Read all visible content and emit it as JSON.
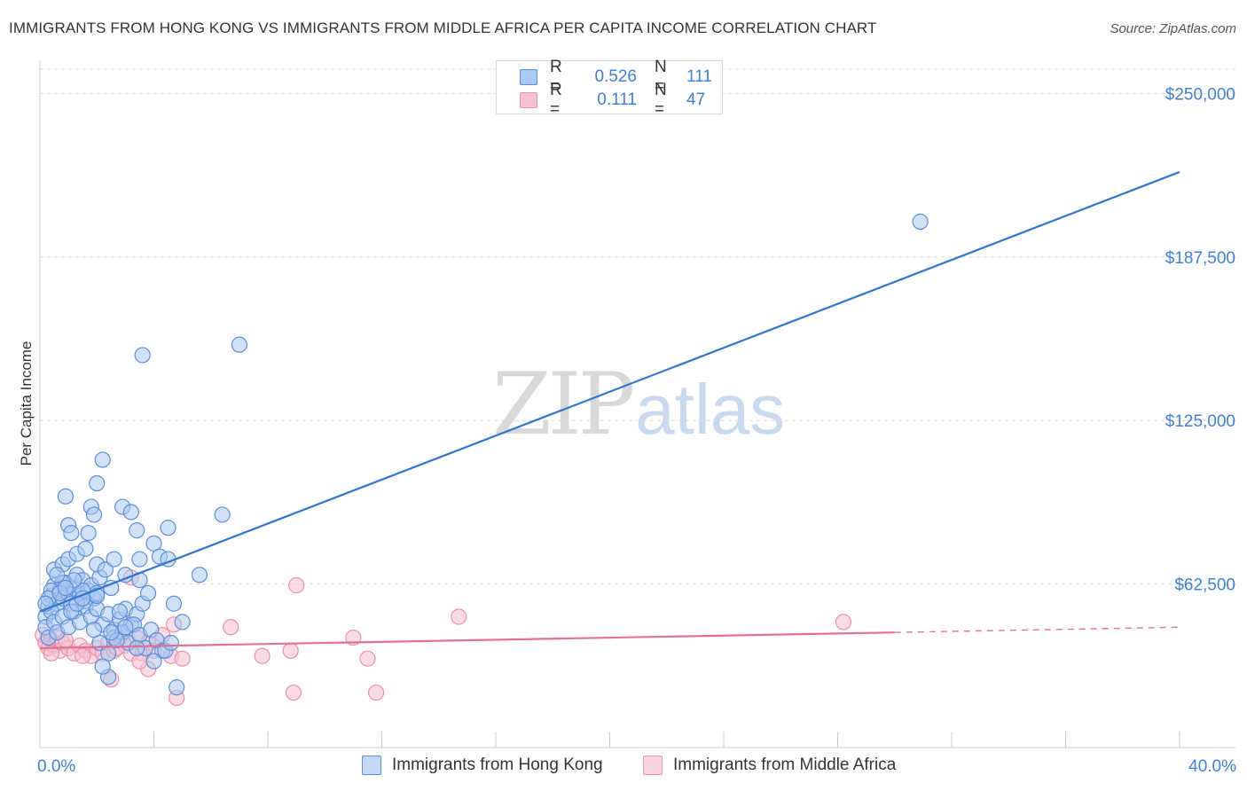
{
  "title": "IMMIGRANTS FROM HONG KONG VS IMMIGRANTS FROM MIDDLE AFRICA PER CAPITA INCOME CORRELATION CHART",
  "source": "Source: ZipAtlas.com",
  "watermark": {
    "zip": "ZIP",
    "atlas": "atlas"
  },
  "colors": {
    "blue_fill": "#a9c8f2",
    "blue_stroke": "#5b8fd8",
    "blue_line": "#2f74d0",
    "pink_fill": "#f7c0d0",
    "pink_stroke": "#e98fab",
    "pink_line": "#e46e96",
    "tick_text": "#3f7fd6",
    "grid": "#dddddd"
  },
  "legend": {
    "rows": [
      {
        "r_label": "R =",
        "r_value": "0.526",
        "n_label": "N =",
        "n_value": "111"
      },
      {
        "r_label": "R =",
        "r_value": "0.111",
        "n_label": "N =",
        "n_value": "47"
      }
    ]
  },
  "chart_data": {
    "type": "scatter",
    "title": "IMMIGRANTS FROM HONG KONG VS IMMIGRANTS FROM MIDDLE AFRICA PER CAPITA INCOME CORRELATION CHART",
    "xlabel": "",
    "ylabel": "Per Capita Income",
    "xlim": [
      0,
      40
    ],
    "ylim": [
      0,
      262000
    ],
    "x_tick_labels": [
      "0.0%",
      "40.0%"
    ],
    "y_ticks": [
      62500,
      125000,
      187500,
      250000
    ],
    "y_tick_labels": [
      "$62,500",
      "$125,000",
      "$187,500",
      "$250,000"
    ],
    "series": [
      {
        "name": "Immigrants from Hong Kong",
        "color": "blue",
        "r": 0.526,
        "n": 111,
        "trend": {
          "x": [
            0,
            40
          ],
          "y": [
            52000,
            220000
          ],
          "dashed_from": null
        },
        "points": [
          [
            0.2,
            50000
          ],
          [
            0.3,
            54000
          ],
          [
            0.4,
            58000
          ],
          [
            0.5,
            62000
          ],
          [
            0.6,
            55000
          ],
          [
            0.7,
            60000
          ],
          [
            0.8,
            57000
          ],
          [
            0.9,
            63000
          ],
          [
            1.0,
            59000
          ],
          [
            1.1,
            55000
          ],
          [
            1.2,
            61000
          ],
          [
            1.3,
            66000
          ],
          [
            1.4,
            58000
          ],
          [
            1.5,
            64000
          ],
          [
            1.6,
            56000
          ],
          [
            1.7,
            60000
          ],
          [
            1.8,
            62000
          ],
          [
            1.9,
            57000
          ],
          [
            2.0,
            59000
          ],
          [
            2.1,
            65000
          ],
          [
            0.2,
            46000
          ],
          [
            0.3,
            42000
          ],
          [
            0.4,
            52000
          ],
          [
            0.5,
            48000
          ],
          [
            0.6,
            44000
          ],
          [
            0.8,
            50000
          ],
          [
            1.0,
            46000
          ],
          [
            1.2,
            52000
          ],
          [
            1.4,
            48000
          ],
          [
            1.6,
            54000
          ],
          [
            1.8,
            50000
          ],
          [
            2.0,
            53000
          ],
          [
            2.2,
            47000
          ],
          [
            2.4,
            51000
          ],
          [
            2.6,
            45000
          ],
          [
            2.8,
            49000
          ],
          [
            3.0,
            53000
          ],
          [
            3.2,
            47000
          ],
          [
            3.4,
            51000
          ],
          [
            3.6,
            55000
          ],
          [
            0.5,
            68000
          ],
          [
            0.8,
            70000
          ],
          [
            1.0,
            72000
          ],
          [
            1.3,
            74000
          ],
          [
            1.6,
            76000
          ],
          [
            2.0,
            70000
          ],
          [
            2.3,
            68000
          ],
          [
            2.6,
            72000
          ],
          [
            3.0,
            66000
          ],
          [
            3.5,
            72000
          ],
          [
            0.9,
            96000
          ],
          [
            1.0,
            85000
          ],
          [
            1.1,
            82000
          ],
          [
            1.8,
            92000
          ],
          [
            1.9,
            89000
          ],
          [
            2.0,
            101000
          ],
          [
            2.2,
            110000
          ],
          [
            2.9,
            92000
          ],
          [
            3.2,
            90000
          ],
          [
            3.4,
            83000
          ],
          [
            4.0,
            78000
          ],
          [
            4.5,
            84000
          ],
          [
            6.4,
            89000
          ],
          [
            3.6,
            150000
          ],
          [
            7.0,
            154000
          ],
          [
            1.7,
            82000
          ],
          [
            4.2,
            73000
          ],
          [
            4.5,
            72000
          ],
          [
            3.5,
            64000
          ],
          [
            2.5,
            61000
          ],
          [
            2.0,
            58000
          ],
          [
            1.5,
            60000
          ],
          [
            1.2,
            64000
          ],
          [
            0.8,
            63000
          ],
          [
            0.6,
            66000
          ],
          [
            0.4,
            60000
          ],
          [
            0.3,
            57000
          ],
          [
            0.2,
            55000
          ],
          [
            1.9,
            45000
          ],
          [
            2.1,
            40000
          ],
          [
            2.4,
            36000
          ],
          [
            2.6,
            42000
          ],
          [
            2.9,
            44000
          ],
          [
            3.1,
            40000
          ],
          [
            3.3,
            47000
          ],
          [
            3.5,
            43000
          ],
          [
            3.7,
            38000
          ],
          [
            3.9,
            45000
          ],
          [
            4.1,
            41000
          ],
          [
            4.3,
            37000
          ],
          [
            4.7,
            55000
          ],
          [
            5.0,
            48000
          ],
          [
            4.8,
            23000
          ],
          [
            2.4,
            27000
          ],
          [
            2.2,
            31000
          ],
          [
            3.4,
            38000
          ],
          [
            4.4,
            37000
          ],
          [
            2.7,
            41000
          ],
          [
            3.0,
            46000
          ],
          [
            1.1,
            52000
          ],
          [
            1.3,
            55000
          ],
          [
            1.5,
            57000
          ],
          [
            0.7,
            59000
          ],
          [
            0.9,
            61000
          ],
          [
            3.8,
            59000
          ],
          [
            2.8,
            52000
          ],
          [
            4.0,
            33000
          ],
          [
            4.6,
            40000
          ],
          [
            2.5,
            44000
          ],
          [
            5.6,
            66000
          ],
          [
            30.9,
            201000
          ]
        ]
      },
      {
        "name": "Immigrants from Middle Africa",
        "color": "pink",
        "r": 0.111,
        "n": 47,
        "trend": {
          "x": [
            0,
            40
          ],
          "y": [
            38000,
            46000
          ],
          "dashed_from": 30
        },
        "points": [
          [
            0.1,
            43000
          ],
          [
            0.2,
            40000
          ],
          [
            0.3,
            38000
          ],
          [
            0.4,
            41000
          ],
          [
            0.5,
            39000
          ],
          [
            0.6,
            42000
          ],
          [
            0.7,
            37000
          ],
          [
            0.8,
            40000
          ],
          [
            1.0,
            38000
          ],
          [
            1.2,
            36000
          ],
          [
            1.4,
            39000
          ],
          [
            1.6,
            37000
          ],
          [
            1.8,
            35000
          ],
          [
            2.0,
            38000
          ],
          [
            2.2,
            36000
          ],
          [
            2.4,
            40000
          ],
          [
            2.6,
            37000
          ],
          [
            2.8,
            42000
          ],
          [
            3.0,
            39000
          ],
          [
            3.2,
            36000
          ],
          [
            3.4,
            42000
          ],
          [
            3.6,
            36000
          ],
          [
            3.8,
            40000
          ],
          [
            4.0,
            37000
          ],
          [
            4.3,
            43000
          ],
          [
            4.6,
            35000
          ],
          [
            5.0,
            34000
          ],
          [
            2.7,
            38000
          ],
          [
            2.5,
            26000
          ],
          [
            3.8,
            30000
          ],
          [
            4.8,
            19000
          ],
          [
            6.7,
            46000
          ],
          [
            7.8,
            35000
          ],
          [
            8.8,
            37000
          ],
          [
            8.9,
            21000
          ],
          [
            11.0,
            42000
          ],
          [
            11.5,
            34000
          ],
          [
            11.8,
            21000
          ],
          [
            14.7,
            50000
          ],
          [
            28.2,
            48000
          ],
          [
            9.0,
            62000
          ],
          [
            3.2,
            65000
          ],
          [
            4.7,
            47000
          ],
          [
            0.4,
            36000
          ],
          [
            0.9,
            41000
          ],
          [
            1.5,
            35000
          ],
          [
            3.5,
            33000
          ]
        ]
      }
    ]
  },
  "bottom_legend": [
    {
      "label": "Immigrants from Hong Kong"
    },
    {
      "label": "Immigrants from Middle Africa"
    }
  ]
}
